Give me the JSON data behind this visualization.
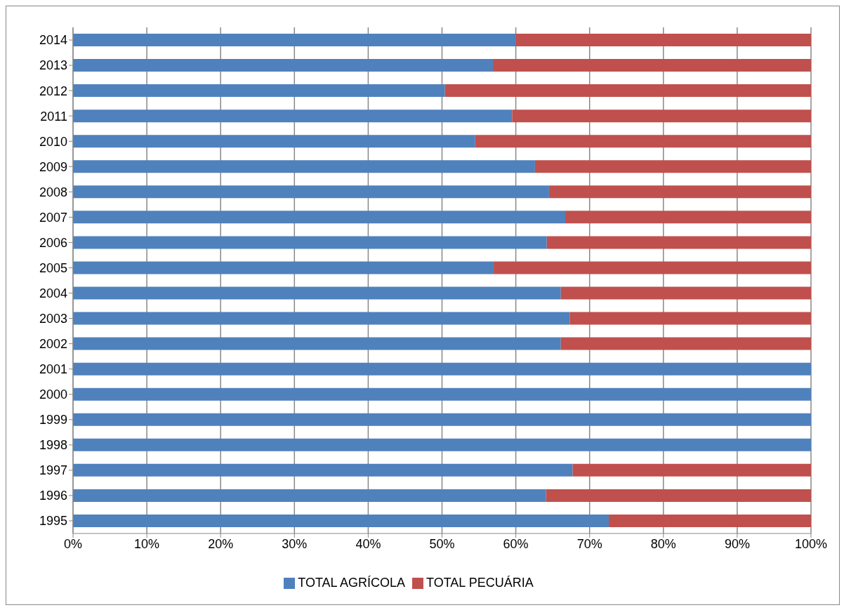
{
  "chart_data": {
    "type": "bar",
    "orientation": "horizontal",
    "stacked": true,
    "categories": [
      "2014",
      "2013",
      "2012",
      "2011",
      "2010",
      "2009",
      "2008",
      "2007",
      "2006",
      "2005",
      "2004",
      "2003",
      "2002",
      "2001",
      "2000",
      "1999",
      "1998",
      "1997",
      "1996",
      "1995"
    ],
    "series": [
      {
        "name": "TOTAL AGRÍCOLA",
        "color": "#4f81bd",
        "values": [
          60.0,
          56.9,
          50.4,
          59.5,
          54.5,
          62.6,
          64.5,
          66.7,
          64.2,
          57.0,
          66.1,
          67.3,
          66.1,
          100,
          100,
          100,
          100,
          67.7,
          64.1,
          72.6
        ]
      },
      {
        "name": "TOTAL PECUÁRIA",
        "color": "#c0504d",
        "values": [
          40.0,
          43.1,
          49.6,
          40.5,
          45.5,
          37.4,
          35.5,
          33.3,
          35.8,
          43.0,
          33.9,
          32.7,
          33.9,
          0,
          0,
          0,
          0,
          32.3,
          35.9,
          27.4
        ]
      }
    ],
    "xlim": [
      0,
      100
    ],
    "xticks": [
      {
        "value": 0,
        "label": "0%"
      },
      {
        "value": 10,
        "label": "10%"
      },
      {
        "value": 20,
        "label": "20%"
      },
      {
        "value": 30,
        "label": "30%"
      },
      {
        "value": 40,
        "label": "40%"
      },
      {
        "value": 50,
        "label": "50%"
      },
      {
        "value": 60,
        "label": "60%"
      },
      {
        "value": 70,
        "label": "70%"
      },
      {
        "value": 80,
        "label": "80%"
      },
      {
        "value": 90,
        "label": "90%"
      },
      {
        "value": 100,
        "label": "100%"
      }
    ],
    "grid": "x",
    "legend": "bottom"
  }
}
